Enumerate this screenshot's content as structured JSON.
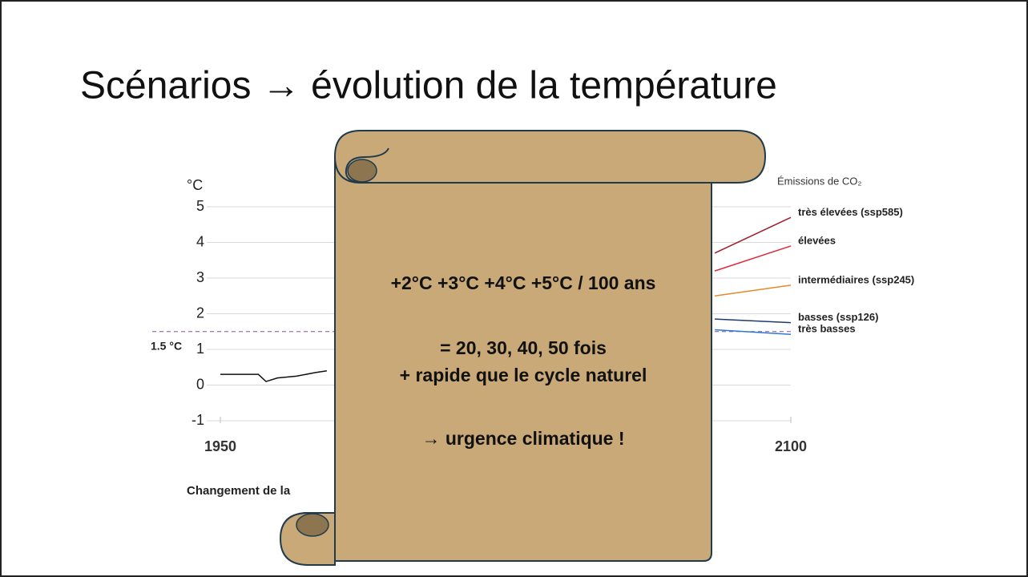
{
  "slide_title": "Scénarios → évolution de la température",
  "scroll": {
    "lines": [
      "+2°C +3°C +4°C +5°C / 100 ans",
      "= 20, 30, 40, 50 fois",
      "+ rapide que le cycle naturel",
      "→ urgence climatique !"
    ]
  },
  "chart_data": {
    "type": "line",
    "ylabel": "°C",
    "caption": "Changement de la",
    "legend_title": "Émissions de CO₂",
    "xlim": [
      1950,
      2100
    ],
    "xticks": [
      1950,
      2100
    ],
    "ylim": [
      -1,
      5
    ],
    "yticks": [
      -1,
      0,
      1,
      2,
      3,
      4,
      5
    ],
    "grid": true,
    "threshold": {
      "value": 1.5,
      "label": "1.5 °C"
    },
    "series": [
      {
        "name": null,
        "color": "#111111",
        "x": [
          1950,
          1955,
          1960,
          1962,
          1965,
          1970,
          1975,
          1978
        ],
        "values": [
          0.3,
          0.3,
          0.3,
          0.1,
          0.2,
          0.25,
          0.35,
          0.4
        ]
      },
      {
        "name": "très élevées (ssp585)",
        "color": "#a01c2c",
        "x": [
          2080,
          2100
        ],
        "values": [
          3.7,
          4.7
        ]
      },
      {
        "name": "élevées",
        "color": "#e0283c",
        "x": [
          2080,
          2100
        ],
        "values": [
          3.2,
          3.9
        ]
      },
      {
        "name": "intermédiaires (ssp245)",
        "color": "#e8892a",
        "x": [
          2080,
          2100
        ],
        "values": [
          2.5,
          2.8
        ]
      },
      {
        "name": "basses (ssp126)",
        "color": "#1f3a6b",
        "x": [
          2080,
          2100
        ],
        "values": [
          1.85,
          1.75
        ]
      },
      {
        "name": "très basses",
        "color": "#2c7bd0",
        "x": [
          2080,
          2100
        ],
        "values": [
          1.55,
          1.42
        ]
      }
    ]
  }
}
